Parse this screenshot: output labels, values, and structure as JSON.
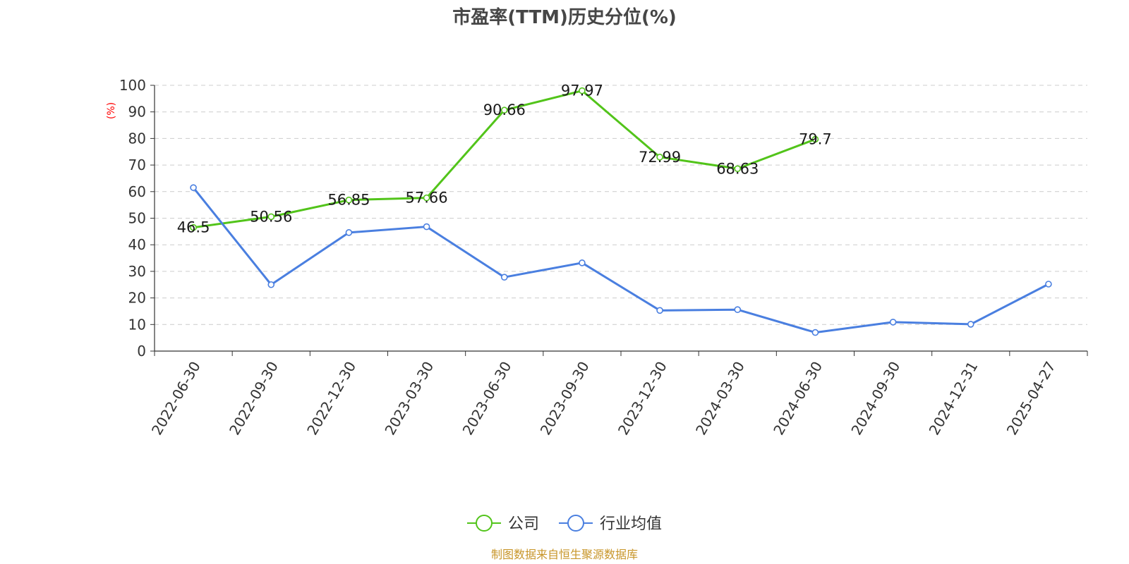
{
  "chart_data": {
    "type": "line",
    "title": "市盈率(TTM)历史分位(%)",
    "ylabel": "(%)",
    "ylim": [
      0,
      100
    ],
    "yticks": [
      0,
      10,
      20,
      30,
      40,
      50,
      60,
      70,
      80,
      90,
      100
    ],
    "grid": true,
    "legend_position": "bottom",
    "categories": [
      "2022-06-30",
      "2022-09-30",
      "2022-12-30",
      "2023-03-30",
      "2023-06-30",
      "2023-09-30",
      "2023-12-30",
      "2024-03-30",
      "2024-06-30",
      "2024-09-30",
      "2024-12-31",
      "2025-04-27"
    ],
    "series": [
      {
        "name": "公司",
        "color": "#52c41a",
        "values": [
          46.5,
          50.56,
          56.85,
          57.66,
          90.66,
          97.97,
          72.99,
          68.63,
          79.7,
          null,
          null,
          null
        ],
        "labels": [
          "46.5",
          "50.56",
          "56.85",
          "57.66",
          "90.66",
          "97.97",
          "72.99",
          "68.63",
          "79.7",
          null,
          null,
          null
        ]
      },
      {
        "name": "行业均值",
        "color": "#4a7fe0",
        "values": [
          61.5,
          25,
          44.6,
          46.8,
          27.8,
          33.2,
          15.3,
          15.6,
          7,
          10.9,
          10.1,
          25.2
        ]
      }
    ]
  },
  "footer": {
    "text": "制图数据来自恒生聚源数据库",
    "color": "#c8962a"
  }
}
